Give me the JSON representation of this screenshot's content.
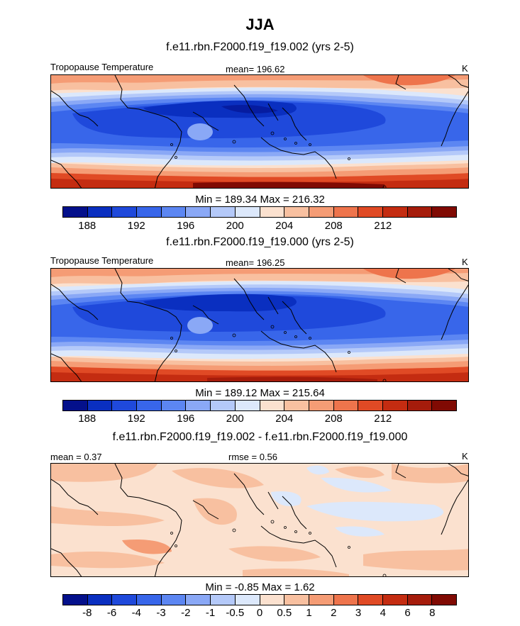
{
  "figure_title": "JJA",
  "chart_data": [
    {
      "type": "heatmap",
      "title": "f.e11.rbn.F2000.f19_f19.002 (yrs 2-5)",
      "left_label": "Tropopause Temperature",
      "center_label": "mean= 196.62",
      "units": "K",
      "min": 189.34,
      "max": 216.32,
      "stats_text": "Min = 189.34 Max = 216.32",
      "colorbar_levels": [
        "188",
        "192",
        "196",
        "200",
        "204",
        "208",
        "212"
      ],
      "colorbar_colors": [
        "#04108b",
        "#0a2fc0",
        "#1f49db",
        "#3866ea",
        "#5c86f2",
        "#8aa8f6",
        "#b4c9f9",
        "#dce8fb",
        "#fbe1cf",
        "#f8c0a0",
        "#f59c75",
        "#ee744c",
        "#e04a25",
        "#c42c11",
        "#a51c0b",
        "#800a03"
      ]
    },
    {
      "type": "heatmap",
      "title": "f.e11.rbn.F2000.f19_f19.000 (yrs 2-5)",
      "left_label": "Tropopause Temperature",
      "center_label": "mean= 196.25",
      "units": "K",
      "min": 189.12,
      "max": 215.64,
      "stats_text": "Min = 189.12 Max = 215.64",
      "colorbar_levels": [
        "188",
        "192",
        "196",
        "200",
        "204",
        "208",
        "212"
      ],
      "colorbar_colors": [
        "#04108b",
        "#0a2fc0",
        "#1f49db",
        "#3866ea",
        "#5c86f2",
        "#8aa8f6",
        "#b4c9f9",
        "#dce8fb",
        "#fbe1cf",
        "#f8c0a0",
        "#f59c75",
        "#ee744c",
        "#e04a25",
        "#c42c11",
        "#a51c0b",
        "#800a03"
      ]
    },
    {
      "type": "heatmap",
      "title": "f.e11.rbn.F2000.f19_f19.002 - f.e11.rbn.F2000.f19_f19.000",
      "left_label": "mean =   0.37",
      "center_label": "rmse =   0.56",
      "units": "K",
      "min": -0.85,
      "max": 1.62,
      "stats_text": "Min =  -0.85 Max =   1.62",
      "colorbar_levels": [
        "-8",
        "-6",
        "-4",
        "-3",
        "-2",
        "-1",
        "-0.5",
        "0",
        "0.5",
        "1",
        "2",
        "3",
        "4",
        "6",
        "8"
      ],
      "colorbar_colors": [
        "#04108b",
        "#0a2fc0",
        "#1f49db",
        "#3866ea",
        "#5c86f2",
        "#8aa8f6",
        "#b4c9f9",
        "#dce8fb",
        "#fbe1cf",
        "#f8c0a0",
        "#f59c75",
        "#ee744c",
        "#e04a25",
        "#c42c11",
        "#a51c0b",
        "#800a03"
      ]
    }
  ]
}
